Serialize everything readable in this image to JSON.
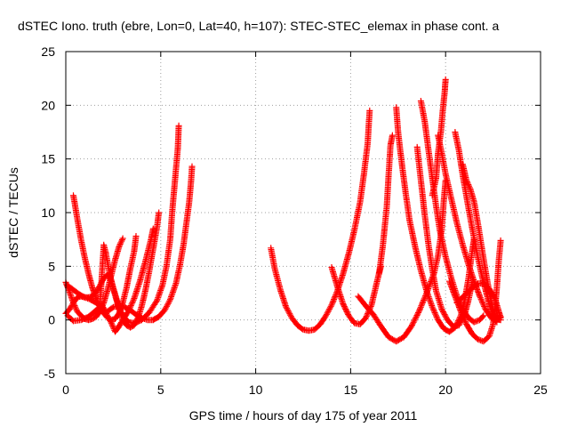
{
  "chart_data": {
    "type": "scatter",
    "title": "dSTEC Iono. truth (ebre, Lon=0, Lat=40, h=107): STEC-STEC_elemax in phase cont. a",
    "xlabel": "GPS time / hours of day 175 of year 2011",
    "ylabel": "dSTEC  / TECUs",
    "xlim": [
      0,
      25
    ],
    "ylim": [
      -5,
      25
    ],
    "xticks": [
      0,
      5,
      10,
      15,
      20,
      25
    ],
    "yticks": [
      -5,
      0,
      5,
      10,
      15,
      20,
      25
    ],
    "grid": true,
    "marker": "plus",
    "color": "#ff0000",
    "series": [
      {
        "values": [
          [
            0.0,
            3.5
          ],
          [
            0.2,
            2.6
          ],
          [
            0.4,
            1.6
          ],
          [
            0.6,
            0.8
          ],
          [
            0.8,
            0.4
          ],
          [
            1.0,
            0.1
          ],
          [
            1.2,
            0.0
          ],
          [
            1.4,
            0.1
          ],
          [
            1.6,
            0.3
          ],
          [
            1.8,
            0.8
          ],
          [
            2.0,
            1.6
          ],
          [
            2.2,
            2.8
          ],
          [
            2.4,
            4.2
          ],
          [
            2.6,
            5.6
          ],
          [
            2.8,
            6.8
          ],
          [
            3.0,
            7.6
          ]
        ]
      },
      {
        "values": [
          [
            0.4,
            11.6
          ],
          [
            0.6,
            9.5
          ],
          [
            0.8,
            7.5
          ],
          [
            1.0,
            5.8
          ],
          [
            1.2,
            4.3
          ],
          [
            1.4,
            3.0
          ],
          [
            1.6,
            2.0
          ],
          [
            1.8,
            1.2
          ],
          [
            2.0,
            0.6
          ],
          [
            2.2,
            0.2
          ],
          [
            2.4,
            0.0
          ],
          [
            2.6,
            0.1
          ],
          [
            2.8,
            0.6
          ],
          [
            3.0,
            1.6
          ],
          [
            3.2,
            3.0
          ],
          [
            3.4,
            4.8
          ],
          [
            3.6,
            6.4
          ],
          [
            3.7,
            7.8
          ]
        ]
      },
      {
        "values": [
          [
            0.0,
            0.6
          ],
          [
            0.2,
            1.0
          ],
          [
            0.4,
            1.6
          ],
          [
            0.6,
            2.1
          ],
          [
            0.8,
            2.2
          ],
          [
            1.0,
            2.1
          ],
          [
            1.2,
            2.1
          ],
          [
            1.4,
            2.2
          ],
          [
            1.6,
            2.6
          ],
          [
            1.8,
            3.2
          ],
          [
            2.0,
            3.9
          ],
          [
            2.2,
            4.2
          ],
          [
            2.4,
            3.6
          ],
          [
            2.6,
            2.4
          ],
          [
            2.8,
            1.1
          ],
          [
            3.0,
            0.0
          ],
          [
            3.2,
            -0.5
          ],
          [
            3.4,
            -0.7
          ],
          [
            3.6,
            -0.5
          ],
          [
            3.8,
            0.2
          ],
          [
            4.0,
            1.3
          ],
          [
            4.2,
            2.8
          ],
          [
            4.4,
            4.6
          ],
          [
            4.6,
            6.6
          ],
          [
            4.8,
            8.6
          ],
          [
            4.9,
            10.0
          ]
        ]
      },
      {
        "values": [
          [
            0.1,
            0.4
          ],
          [
            0.4,
            -0.1
          ],
          [
            0.8,
            0.0
          ],
          [
            1.2,
            0.3
          ],
          [
            1.6,
            0.9
          ],
          [
            1.9,
            1.4
          ],
          [
            2.1,
            0.7
          ],
          [
            2.4,
            -0.3
          ],
          [
            2.6,
            -1.1
          ],
          [
            2.8,
            -0.6
          ],
          [
            3.0,
            0.0
          ],
          [
            3.3,
            0.8
          ],
          [
            3.6,
            2.0
          ],
          [
            3.9,
            3.6
          ],
          [
            4.2,
            5.5
          ],
          [
            4.5,
            7.6
          ],
          [
            4.6,
            8.5
          ]
        ]
      },
      {
        "values": [
          [
            0.1,
            3.2
          ],
          [
            0.4,
            2.8
          ],
          [
            0.7,
            2.4
          ],
          [
            1.0,
            2.1
          ],
          [
            1.3,
            1.9
          ],
          [
            1.6,
            1.6
          ],
          [
            1.8,
            1.3
          ],
          [
            2.0,
            7.0
          ],
          [
            2.1,
            6.3
          ],
          [
            2.3,
            4.4
          ],
          [
            2.5,
            2.9
          ],
          [
            2.7,
            1.7
          ],
          [
            2.9,
            0.8
          ],
          [
            3.1,
            0.2
          ],
          [
            3.3,
            -0.2
          ],
          [
            3.6,
            -0.3
          ],
          [
            4.0,
            0.0
          ],
          [
            4.4,
            0.7
          ],
          [
            4.8,
            1.8
          ],
          [
            5.1,
            3.3
          ],
          [
            5.3,
            5.0
          ],
          [
            5.5,
            7.5
          ],
          [
            5.6,
            10.0
          ],
          [
            5.75,
            13.0
          ],
          [
            5.9,
            16.0
          ],
          [
            5.95,
            18.1
          ]
        ]
      },
      {
        "values": [
          [
            2.2,
            0.8
          ],
          [
            2.5,
            1.2
          ],
          [
            2.8,
            1.3
          ],
          [
            3.1,
            1.2
          ],
          [
            3.4,
            0.9
          ],
          [
            3.7,
            0.5
          ],
          [
            4.0,
            0.2
          ],
          [
            4.3,
            0.0
          ],
          [
            4.6,
            0.0
          ],
          [
            4.9,
            0.3
          ],
          [
            5.2,
            0.9
          ],
          [
            5.5,
            1.9
          ],
          [
            5.8,
            3.4
          ],
          [
            6.0,
            5.0
          ],
          [
            6.2,
            7.0
          ],
          [
            6.35,
            9.0
          ],
          [
            6.5,
            11.0
          ],
          [
            6.6,
            13.0
          ],
          [
            6.65,
            14.3
          ]
        ]
      },
      {
        "values": [
          [
            10.8,
            6.7
          ],
          [
            11.0,
            4.8
          ],
          [
            11.3,
            2.8
          ],
          [
            11.6,
            1.2
          ],
          [
            11.9,
            0.2
          ],
          [
            12.2,
            -0.5
          ],
          [
            12.5,
            -0.9
          ],
          [
            12.8,
            -1.0
          ],
          [
            13.1,
            -0.9
          ],
          [
            13.4,
            -0.4
          ],
          [
            13.7,
            0.4
          ],
          [
            14.0,
            1.4
          ],
          [
            14.3,
            2.7
          ],
          [
            14.6,
            4.3
          ],
          [
            14.9,
            6.2
          ],
          [
            15.2,
            8.4
          ],
          [
            15.5,
            11.0
          ],
          [
            15.7,
            13.6
          ],
          [
            15.9,
            16.5
          ],
          [
            16.0,
            19.5
          ]
        ]
      },
      {
        "values": [
          [
            14.0,
            4.9
          ],
          [
            14.3,
            3.1
          ],
          [
            14.6,
            1.5
          ],
          [
            14.9,
            0.4
          ],
          [
            15.2,
            -0.3
          ],
          [
            15.5,
            -0.4
          ],
          [
            15.8,
            0.2
          ],
          [
            16.1,
            1.4
          ],
          [
            16.3,
            2.9
          ],
          [
            16.5,
            4.4
          ],
          [
            16.6,
            5.0
          ]
        ]
      },
      {
        "values": [
          [
            15.4,
            2.2
          ],
          [
            15.8,
            1.3
          ],
          [
            16.2,
            0.5
          ],
          [
            16.6,
            -0.6
          ],
          [
            17.0,
            -1.6
          ],
          [
            17.4,
            -2.0
          ],
          [
            17.8,
            -1.6
          ],
          [
            18.2,
            -0.6
          ],
          [
            18.6,
            0.8
          ],
          [
            19.0,
            2.5
          ],
          [
            19.4,
            4.4
          ],
          [
            19.6,
            6.0
          ],
          [
            19.8,
            8.5
          ],
          [
            19.9,
            11.0
          ],
          [
            20.0,
            13.0
          ]
        ]
      },
      {
        "values": [
          [
            16.5,
            4.3
          ],
          [
            16.7,
            7.0
          ],
          [
            16.9,
            10.5
          ],
          [
            17.0,
            13.5
          ],
          [
            17.1,
            16.3
          ],
          [
            17.2,
            17.2
          ]
        ]
      },
      {
        "values": [
          [
            17.4,
            19.8
          ],
          [
            17.5,
            17.5
          ],
          [
            17.7,
            14.5
          ],
          [
            17.9,
            11.8
          ],
          [
            18.1,
            9.3
          ],
          [
            18.4,
            6.8
          ],
          [
            18.7,
            4.6
          ],
          [
            19.0,
            2.7
          ],
          [
            19.3,
            1.2
          ],
          [
            19.6,
            0.0
          ],
          [
            19.9,
            -0.8
          ],
          [
            20.2,
            -1.1
          ],
          [
            20.5,
            -0.7
          ],
          [
            20.8,
            0.4
          ],
          [
            21.0,
            1.8
          ],
          [
            21.2,
            3.8
          ],
          [
            21.4,
            6.4
          ],
          [
            21.5,
            7.6
          ]
        ]
      },
      {
        "values": [
          [
            18.5,
            16.1
          ],
          [
            18.7,
            13.0
          ],
          [
            18.9,
            9.8
          ],
          [
            19.1,
            7.0
          ],
          [
            19.3,
            4.7
          ],
          [
            19.5,
            2.7
          ],
          [
            19.8,
            1.0
          ],
          [
            20.1,
            0.0
          ],
          [
            20.4,
            -0.6
          ],
          [
            20.7,
            -0.5
          ],
          [
            21.0,
            0.5
          ],
          [
            21.2,
            1.8
          ],
          [
            21.4,
            3.5
          ]
        ]
      },
      {
        "values": [
          [
            18.7,
            20.4
          ],
          [
            18.9,
            18.5
          ],
          [
            19.1,
            15.8
          ],
          [
            19.3,
            13.2
          ],
          [
            19.5,
            10.6
          ],
          [
            19.7,
            8.3
          ],
          [
            20.0,
            5.9
          ],
          [
            20.3,
            3.9
          ],
          [
            20.6,
            2.2
          ],
          [
            20.9,
            1.0
          ],
          [
            21.2,
            0.2
          ],
          [
            21.5,
            -0.2
          ],
          [
            21.8,
            0.0
          ],
          [
            22.0,
            0.4
          ]
        ]
      },
      {
        "values": [
          [
            19.3,
            11.6
          ],
          [
            19.5,
            13.2
          ],
          [
            19.6,
            15.5
          ],
          [
            19.75,
            17.5
          ],
          [
            19.85,
            19.5
          ],
          [
            19.95,
            21.2
          ],
          [
            20.0,
            22.4
          ]
        ]
      },
      {
        "values": [
          [
            19.6,
            17.2
          ],
          [
            19.8,
            15.5
          ],
          [
            20.0,
            13.6
          ],
          [
            20.3,
            11.3
          ],
          [
            20.6,
            9.0
          ],
          [
            20.9,
            7.0
          ],
          [
            21.2,
            5.2
          ],
          [
            21.5,
            3.6
          ],
          [
            21.8,
            2.2
          ],
          [
            22.1,
            1.0
          ],
          [
            22.4,
            0.2
          ],
          [
            22.7,
            -0.2
          ]
        ]
      },
      {
        "values": [
          [
            20.5,
            17.5
          ],
          [
            20.7,
            15.8
          ],
          [
            20.9,
            13.5
          ],
          [
            21.1,
            11.5
          ],
          [
            21.3,
            9.5
          ],
          [
            21.5,
            7.6
          ],
          [
            21.7,
            5.8
          ],
          [
            21.9,
            4.2
          ],
          [
            22.1,
            2.8
          ],
          [
            22.3,
            1.5
          ],
          [
            22.5,
            0.5
          ],
          [
            22.7,
            0.0
          ],
          [
            22.9,
            0.3
          ]
        ]
      },
      {
        "values": [
          [
            20.9,
            14.5
          ],
          [
            21.1,
            13.0
          ],
          [
            21.3,
            12.2
          ],
          [
            21.5,
            11.0
          ],
          [
            21.7,
            9.0
          ],
          [
            21.9,
            6.8
          ],
          [
            22.1,
            4.6
          ],
          [
            22.3,
            2.6
          ],
          [
            22.5,
            1.0
          ],
          [
            22.7,
            0.1
          ],
          [
            22.9,
            0.0
          ]
        ]
      },
      {
        "values": [
          [
            20.2,
            3.6
          ],
          [
            20.5,
            2.2
          ],
          [
            20.8,
            0.8
          ],
          [
            21.1,
            -0.4
          ],
          [
            21.4,
            -1.3
          ],
          [
            21.7,
            -1.8
          ],
          [
            22.0,
            -2.0
          ],
          [
            22.3,
            -1.5
          ],
          [
            22.5,
            -0.4
          ],
          [
            22.6,
            1.0
          ],
          [
            22.7,
            3.0
          ],
          [
            22.8,
            5.5
          ],
          [
            22.9,
            7.4
          ]
        ]
      },
      {
        "values": [
          [
            20.6,
            1.6
          ],
          [
            21.0,
            2.3
          ],
          [
            21.4,
            3.0
          ],
          [
            21.7,
            3.4
          ],
          [
            22.0,
            3.4
          ],
          [
            22.3,
            2.9
          ],
          [
            22.6,
            2.0
          ],
          [
            22.8,
            0.8
          ],
          [
            22.9,
            0.2
          ]
        ]
      }
    ]
  }
}
